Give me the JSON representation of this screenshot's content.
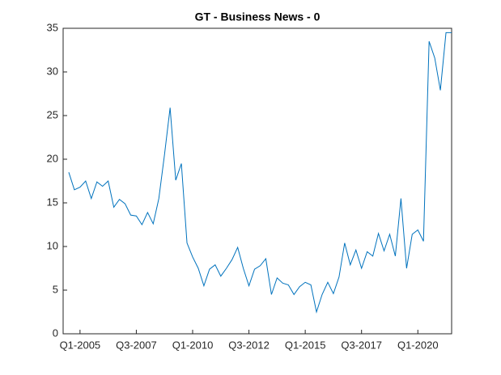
{
  "chart_data": {
    "type": "line",
    "title": "GT - Business News - 0",
    "categories": [
      null,
      null,
      "Q1-2005",
      null,
      null,
      null,
      null,
      null,
      null,
      null,
      null,
      null,
      "Q3-2007",
      null,
      null,
      null,
      null,
      null,
      null,
      null,
      null,
      null,
      "Q1-2010",
      null,
      null,
      null,
      null,
      null,
      null,
      null,
      null,
      null,
      "Q3-2012",
      null,
      null,
      null,
      null,
      null,
      null,
      null,
      null,
      null,
      "Q1-2015",
      null,
      null,
      null,
      null,
      null,
      null,
      null,
      null,
      null,
      "Q3-2017",
      null,
      null,
      null,
      null,
      null,
      null,
      null,
      null,
      null,
      "Q1-2020",
      null,
      null,
      null,
      null,
      null,
      null
    ],
    "values": [
      18.5,
      16.5,
      16.8,
      17.5,
      15.5,
      17.4,
      16.9,
      17.5,
      14.5,
      15.4,
      14.9,
      13.6,
      13.5,
      12.5,
      13.9,
      12.6,
      15.5,
      20.5,
      25.9,
      17.6,
      19.5,
      10.4,
      8.8,
      7.5,
      5.5,
      7.4,
      7.9,
      6.6,
      7.5,
      8.5,
      9.9,
      7.5,
      5.5,
      7.4,
      7.8,
      8.6,
      4.5,
      6.4,
      5.8,
      5.6,
      4.5,
      5.4,
      5.9,
      5.6,
      2.5,
      4.5,
      5.9,
      4.6,
      6.5,
      10.4,
      7.9,
      9.6,
      7.5,
      9.4,
      8.9,
      11.5,
      9.5,
      11.4,
      8.9,
      15.5,
      7.5,
      11.4,
      11.9,
      10.6,
      33.5,
      31.6,
      27.9,
      34.5,
      34.5
    ],
    "color": "#0072bd",
    "ylim": [
      0,
      35
    ],
    "yticks": [
      0,
      5,
      10,
      15,
      20,
      25,
      30,
      35
    ],
    "grid": false
  }
}
